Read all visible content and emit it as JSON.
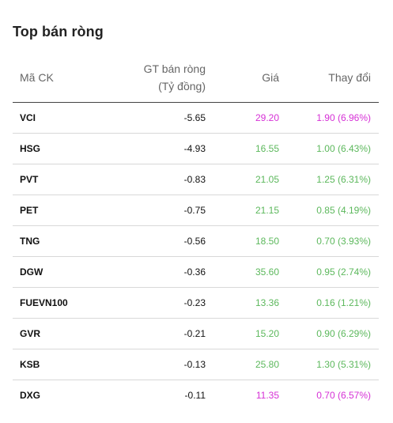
{
  "widget": {
    "title": "Top bán ròng"
  },
  "columns": {
    "code": "Mã CK",
    "value_line1": "GT bán ròng",
    "value_line2": "(Tỷ đồng)",
    "price": "Giá",
    "change": "Thay đổi"
  },
  "colors": {
    "up": "#5cb85c",
    "ceiling": "#d630d6"
  },
  "rows": [
    {
      "code": "VCI",
      "value": "-5.65",
      "price": "29.20",
      "change": "1.90 (6.96%)",
      "status": "ceiling"
    },
    {
      "code": "HSG",
      "value": "-4.93",
      "price": "16.55",
      "change": "1.00 (6.43%)",
      "status": "up"
    },
    {
      "code": "PVT",
      "value": "-0.83",
      "price": "21.05",
      "change": "1.25 (6.31%)",
      "status": "up"
    },
    {
      "code": "PET",
      "value": "-0.75",
      "price": "21.15",
      "change": "0.85 (4.19%)",
      "status": "up"
    },
    {
      "code": "TNG",
      "value": "-0.56",
      "price": "18.50",
      "change": "0.70 (3.93%)",
      "status": "up"
    },
    {
      "code": "DGW",
      "value": "-0.36",
      "price": "35.60",
      "change": "0.95 (2.74%)",
      "status": "up"
    },
    {
      "code": "FUEVN100",
      "value": "-0.23",
      "price": "13.36",
      "change": "0.16 (1.21%)",
      "status": "up"
    },
    {
      "code": "GVR",
      "value": "-0.21",
      "price": "15.20",
      "change": "0.90 (6.29%)",
      "status": "up"
    },
    {
      "code": "KSB",
      "value": "-0.13",
      "price": "25.80",
      "change": "1.30 (5.31%)",
      "status": "up"
    },
    {
      "code": "DXG",
      "value": "-0.11",
      "price": "11.35",
      "change": "0.70 (6.57%)",
      "status": "ceiling"
    }
  ]
}
